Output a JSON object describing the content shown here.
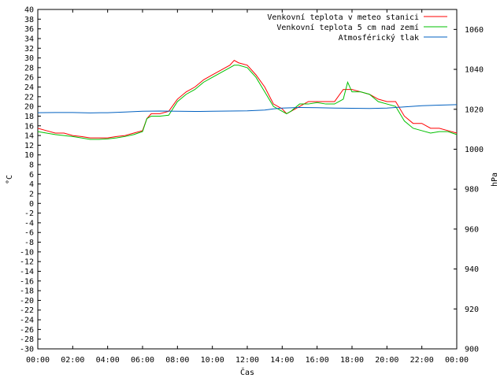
{
  "chart_data": {
    "type": "line",
    "xlabel": "Čas",
    "ylabel": "°C",
    "y2label": "hPa",
    "xlim": [
      0,
      24
    ],
    "ylim": [
      -30,
      40
    ],
    "y2lim": [
      900,
      1070
    ],
    "grid": false,
    "legend_position": "top-right",
    "x_ticks": [
      "00:00",
      "02:00",
      "04:00",
      "06:00",
      "08:00",
      "10:00",
      "12:00",
      "14:00",
      "16:00",
      "18:00",
      "20:00",
      "22:00",
      "00:00"
    ],
    "y_ticks": [
      "-30",
      "-28",
      "-26",
      "-24",
      "-22",
      "-20",
      "-18",
      "-16",
      "-14",
      "-12",
      "-10",
      "-8",
      "-6",
      "-4",
      "-2",
      "0",
      "2",
      "4",
      "6",
      "8",
      "10",
      "12",
      "14",
      "16",
      "18",
      "20",
      "22",
      "24",
      "26",
      "28",
      "30",
      "32",
      "34",
      "36",
      "38",
      "40"
    ],
    "y2_ticks": [
      "900",
      "920",
      "940",
      "960",
      "980",
      "1000",
      "1020",
      "1040",
      "1060"
    ],
    "series": [
      {
        "name": "Venkovní teplota v meteo stanici",
        "color": "#ff0000",
        "axis": "left",
        "x": [
          0,
          0.5,
          1,
          1.5,
          2,
          2.5,
          3,
          3.5,
          4,
          4.5,
          5,
          5.5,
          6,
          6.25,
          6.5,
          7,
          7.5,
          8,
          8.5,
          9,
          9.5,
          10,
          10.5,
          11,
          11.25,
          11.5,
          12,
          12.5,
          13,
          13.5,
          14,
          14.25,
          14.5,
          15,
          15.5,
          16,
          16.5,
          17,
          17.5,
          17.75,
          18,
          18.5,
          19,
          19.5,
          20,
          20.5,
          21,
          21.5,
          22,
          22.5,
          23,
          23.5,
          24
        ],
        "y": [
          15.5,
          15,
          14.5,
          14.5,
          14,
          13.8,
          13.5,
          13.5,
          13.5,
          13.8,
          14,
          14.5,
          15,
          17.5,
          18.5,
          18.5,
          19,
          21.5,
          23,
          24,
          25.5,
          26.5,
          27.5,
          28.5,
          29.5,
          29,
          28.5,
          26.5,
          24,
          20.5,
          19.5,
          18.5,
          19,
          20,
          21,
          21,
          21,
          21,
          23.5,
          23.5,
          23.5,
          23,
          22.5,
          21.5,
          21,
          21,
          18,
          16.5,
          16.5,
          15.5,
          15.5,
          15,
          14.5
        ]
      },
      {
        "name": "Venkovní teplota 5 cm nad zemí",
        "color": "#00c000",
        "axis": "left",
        "x": [
          0,
          0.5,
          1,
          1.5,
          2,
          2.5,
          3,
          3.5,
          4,
          4.5,
          5,
          5.5,
          6,
          6.25,
          6.5,
          7,
          7.5,
          8,
          8.5,
          9,
          9.5,
          10,
          10.5,
          11,
          11.25,
          11.5,
          12,
          12.5,
          13,
          13.5,
          14,
          14.25,
          14.5,
          15,
          15.5,
          16,
          16.5,
          17,
          17.5,
          17.75,
          18,
          18.5,
          19,
          19.5,
          20,
          20.5,
          21,
          21.5,
          22,
          22.5,
          23,
          23.5,
          24
        ],
        "y": [
          14.8,
          14.5,
          14.2,
          14,
          13.8,
          13.5,
          13.2,
          13.2,
          13.3,
          13.5,
          13.8,
          14.2,
          14.8,
          17.5,
          18,
          18,
          18.2,
          21,
          22.5,
          23.5,
          25,
          26,
          27,
          28,
          28.5,
          28.5,
          28,
          26,
          23,
          20,
          19,
          18.5,
          19,
          20.5,
          20.5,
          20.8,
          20.5,
          20.5,
          21.5,
          25,
          23,
          23,
          22.5,
          21,
          20.5,
          20,
          17,
          15.5,
          15,
          14.5,
          14.8,
          14.8,
          14.2
        ]
      },
      {
        "name": "Atmosférický tlak",
        "color": "#0060c0",
        "axis": "right",
        "x": [
          0,
          1,
          2,
          3,
          4,
          5,
          6,
          7,
          8,
          9,
          10,
          11,
          12,
          13,
          13.5,
          14,
          15,
          16,
          17,
          18,
          19,
          20,
          21,
          22,
          23,
          24
        ],
        "y": [
          1018.3,
          1018.4,
          1018.4,
          1018.2,
          1018.3,
          1018.6,
          1019,
          1019.1,
          1019,
          1018.9,
          1019,
          1019.1,
          1019.2,
          1019.6,
          1020.2,
          1020.6,
          1020.9,
          1020.8,
          1020.6,
          1020.5,
          1020.4,
          1020.6,
          1021.2,
          1021.8,
          1022.1,
          1022.3
        ]
      }
    ]
  }
}
